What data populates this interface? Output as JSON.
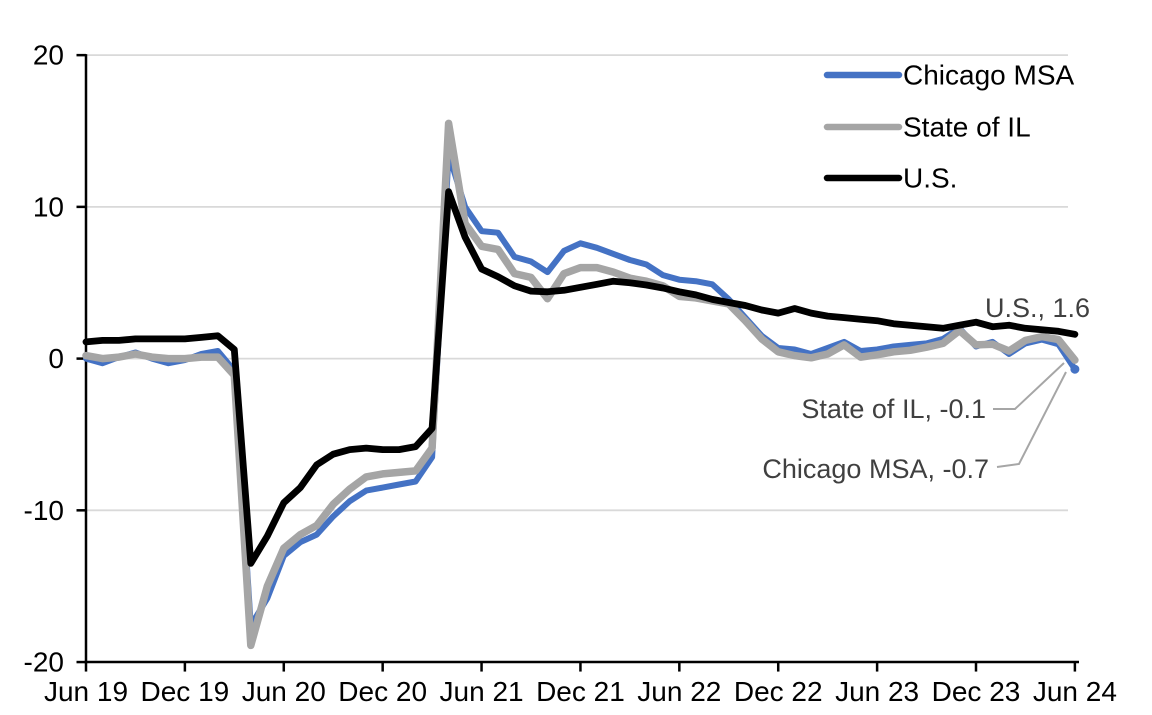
{
  "chart_data": {
    "type": "line",
    "title": "",
    "xlabel": "",
    "ylabel": "",
    "x_range": {
      "start": "Jun 2019",
      "end": "Jun 2024",
      "frequency": "monthly",
      "points": 61
    },
    "x_tick_labels": [
      "Jun 19",
      "Dec 19",
      "Jun 20",
      "Dec 20",
      "Jun 21",
      "Dec 21",
      "Jun 22",
      "Dec 22",
      "Jun 23",
      "Dec 23",
      "Jun 24"
    ],
    "y_tick_labels": [
      "20",
      "10",
      "0",
      "-10",
      "-20"
    ],
    "y_tick_values": [
      20,
      10,
      0,
      -10,
      -20
    ],
    "ylim": [
      -20,
      20
    ],
    "grid": "horizontal gridlines every 10 units",
    "legend_position": "top-right-inside",
    "series": [
      {
        "name": "Chicago MSA",
        "color": "#4472C4",
        "stroke_width": 6,
        "end_dot": true,
        "values": [
          0.0,
          -0.3,
          0.1,
          0.4,
          0.0,
          -0.3,
          -0.1,
          0.3,
          0.5,
          -0.8,
          -17.6,
          -15.8,
          -13.0,
          -12.1,
          -11.6,
          -10.4,
          -9.4,
          -8.7,
          -8.5,
          -8.3,
          -8.1,
          -6.5,
          13.5,
          10.0,
          8.4,
          8.3,
          6.7,
          6.4,
          5.7,
          7.1,
          7.6,
          7.3,
          6.9,
          6.5,
          6.2,
          5.5,
          5.2,
          5.1,
          4.9,
          3.9,
          2.7,
          1.5,
          0.7,
          0.6,
          0.3,
          0.7,
          1.1,
          0.5,
          0.6,
          0.8,
          0.9,
          1.0,
          1.3,
          2.0,
          0.8,
          1.1,
          0.3,
          1.0,
          1.25,
          0.95,
          -0.7
        ]
      },
      {
        "name": "State of IL",
        "color": "#A5A5A5",
        "stroke_width": 7.5,
        "end_dot": false,
        "values": [
          0.2,
          0.0,
          0.1,
          0.3,
          0.1,
          0.0,
          0.0,
          0.1,
          0.1,
          -1.1,
          -18.9,
          -15.0,
          -12.5,
          -11.6,
          -11.0,
          -9.6,
          -8.6,
          -7.8,
          -7.6,
          -7.5,
          -7.4,
          -5.9,
          15.5,
          8.9,
          7.4,
          7.2,
          5.6,
          5.35,
          3.95,
          5.6,
          6.0,
          6.0,
          5.7,
          5.3,
          5.1,
          4.8,
          4.1,
          4.0,
          3.8,
          3.6,
          2.5,
          1.3,
          0.45,
          0.2,
          0.05,
          0.3,
          0.9,
          0.1,
          0.25,
          0.45,
          0.55,
          0.75,
          1.0,
          1.85,
          0.9,
          0.95,
          0.5,
          1.2,
          1.45,
          1.25,
          -0.1
        ]
      },
      {
        "name": "U.S.",
        "color": "#000000",
        "stroke_width": 6.8,
        "end_dot": false,
        "values": [
          1.1,
          1.2,
          1.2,
          1.3,
          1.3,
          1.3,
          1.3,
          1.4,
          1.5,
          0.6,
          -13.5,
          -11.7,
          -9.5,
          -8.5,
          -7.0,
          -6.3,
          -6.0,
          -5.9,
          -6.0,
          -6.0,
          -5.8,
          -4.6,
          11.0,
          8.0,
          5.9,
          5.4,
          4.8,
          4.45,
          4.4,
          4.5,
          4.7,
          4.9,
          5.1,
          5.0,
          4.85,
          4.65,
          4.4,
          4.2,
          3.9,
          3.7,
          3.5,
          3.2,
          3.0,
          3.3,
          3.0,
          2.8,
          2.7,
          2.6,
          2.5,
          2.3,
          2.2,
          2.1,
          2.0,
          2.2,
          2.4,
          2.1,
          2.2,
          2.0,
          1.9,
          1.8,
          1.6
        ]
      }
    ],
    "annotations": [
      {
        "text": "U.S., 1.6",
        "series": "U.S.",
        "value": 1.6,
        "leader_line": false
      },
      {
        "text": "State of IL, -0.1",
        "series": "State of IL",
        "value": -0.1,
        "leader_line": true
      },
      {
        "text": "Chicago MSA, -0.7",
        "series": "Chicago MSA",
        "value": -0.7,
        "leader_line": true
      }
    ]
  },
  "style": {
    "background": "#FFFFFF",
    "gridline_color": "#D9D9D9",
    "axis_color": "#000000",
    "axis_label_color": "#000000",
    "annotation_text_color": "#404040",
    "leader_line_color": "#A6A6A6",
    "legend_text_color": "#000000"
  }
}
